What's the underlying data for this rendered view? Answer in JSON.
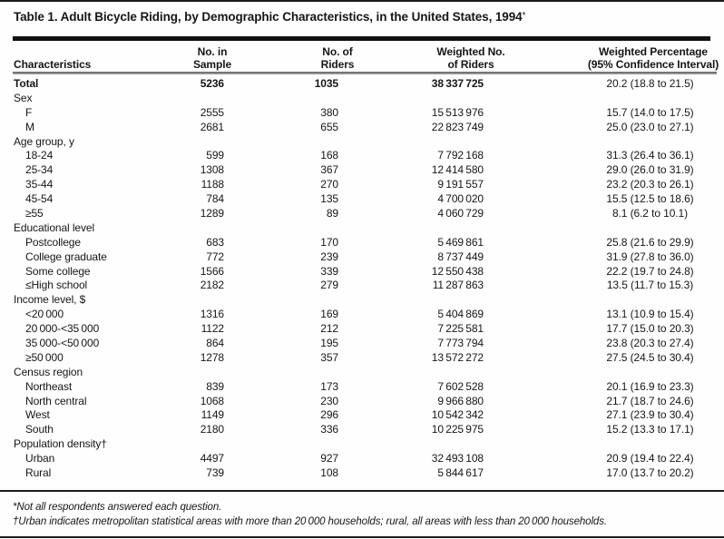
{
  "title": {
    "text": "Table 1. Adult Bicycle Riding, by Demographic Characteristics, in the United States, 1994",
    "note_marker": "*"
  },
  "table": {
    "col_headers": {
      "characteristics": "Characteristics",
      "sample_l1": "No. in",
      "sample_l2": "Sample",
      "riders_l1": "No. of",
      "riders_l2": "Riders",
      "weighted_l1": "Weighted No.",
      "weighted_l2": "of Riders",
      "pct_l1": "Weighted Percentage",
      "pct_l2": "(95% Confidence Interval)"
    },
    "rows": [
      {
        "type": "total",
        "label": "Total",
        "sample": "5236",
        "riders": "1035",
        "weighted": "38 337 725",
        "pct": "20.2 (18.8 to 21.5)"
      },
      {
        "type": "group",
        "label": "Sex"
      },
      {
        "type": "item",
        "label": "F",
        "sample": "2555",
        "riders": "380",
        "weighted": "15 513 976",
        "pct": "15.7 (14.0 to 17.5)"
      },
      {
        "type": "item",
        "label": "M",
        "sample": "2681",
        "riders": "655",
        "weighted": "22 823 749",
        "pct": "25.0 (23.0 to 27.1)"
      },
      {
        "type": "group",
        "label": "Age group, y"
      },
      {
        "type": "item",
        "label": "18-24",
        "sample": "599",
        "riders": "168",
        "weighted": "7 792 168",
        "pct": "31.3 (26.4 to 36.1)"
      },
      {
        "type": "item",
        "label": "25-34",
        "sample": "1308",
        "riders": "367",
        "weighted": "12 414 580",
        "pct": "29.0 (26.0 to 31.9)"
      },
      {
        "type": "item",
        "label": "35-44",
        "sample": "1188",
        "riders": "270",
        "weighted": "9 191 557",
        "pct": "23.2 (20.3 to 26.1)"
      },
      {
        "type": "item",
        "label": "45-54",
        "sample": "784",
        "riders": "135",
        "weighted": "4 700 020",
        "pct": "15.5 (12.5 to 18.6)"
      },
      {
        "type": "item",
        "label": "≥55",
        "sample": "1289",
        "riders": "89",
        "weighted": "4 060 729",
        "pct": "8.1 (6.2 to 10.1)"
      },
      {
        "type": "group",
        "label": "Educational level"
      },
      {
        "type": "item",
        "label": "Postcollege",
        "sample": "683",
        "riders": "170",
        "weighted": "5 469 861",
        "pct": "25.8 (21.6 to 29.9)"
      },
      {
        "type": "item",
        "label": "College graduate",
        "sample": "772",
        "riders": "239",
        "weighted": "8 737 449",
        "pct": "31.9 (27.8 to 36.0)"
      },
      {
        "type": "item",
        "label": "Some college",
        "sample": "1566",
        "riders": "339",
        "weighted": "12 550 438",
        "pct": "22.2 (19.7 to 24.8)"
      },
      {
        "type": "item",
        "label": "≤High school",
        "sample": "2182",
        "riders": "279",
        "weighted": "11 287 863",
        "pct": "13.5 (11.7 to 15.3)"
      },
      {
        "type": "group",
        "label": "Income level, $"
      },
      {
        "type": "item",
        "label": "<20 000",
        "sample": "1316",
        "riders": "169",
        "weighted": "5 404 869",
        "pct": "13.1 (10.9 to 15.4)"
      },
      {
        "type": "item",
        "label": "20 000-<35 000",
        "sample": "1122",
        "riders": "212",
        "weighted": "7 225 581",
        "pct": "17.7 (15.0 to 20.3)"
      },
      {
        "type": "item",
        "label": "35 000-<50 000",
        "sample": "864",
        "riders": "195",
        "weighted": "7 773 794",
        "pct": "23.8 (20.3 to 27.4)"
      },
      {
        "type": "item",
        "label": "≥50 000",
        "sample": "1278",
        "riders": "357",
        "weighted": "13 572 272",
        "pct": "27.5 (24.5 to 30.4)"
      },
      {
        "type": "group",
        "label": "Census region"
      },
      {
        "type": "item",
        "label": "Northeast",
        "sample": "839",
        "riders": "173",
        "weighted": "7 602 528",
        "pct": "20.1 (16.9 to 23.3)"
      },
      {
        "type": "item",
        "label": "North central",
        "sample": "1068",
        "riders": "230",
        "weighted": "9 966 880",
        "pct": "21.7 (18.7 to 24.6)"
      },
      {
        "type": "item",
        "label": "West",
        "sample": "1149",
        "riders": "296",
        "weighted": "10 542 342",
        "pct": "27.1 (23.9 to 30.4)"
      },
      {
        "type": "item",
        "label": "South",
        "sample": "2180",
        "riders": "336",
        "weighted": "10 225 975",
        "pct": "15.2 (13.3 to 17.1)"
      },
      {
        "type": "group",
        "label": "Population density†"
      },
      {
        "type": "item",
        "label": "Urban",
        "sample": "4497",
        "riders": "927",
        "weighted": "32 493 108",
        "pct": "20.9 (19.4 to 22.4)"
      },
      {
        "type": "item",
        "label": "Rural",
        "sample": "739",
        "riders": "108",
        "weighted": "5 844 617",
        "pct": "17.0 (13.7 to 20.2)"
      }
    ]
  },
  "footnotes": [
    "*Not all respondents answered each question.",
    "†Urban indicates metropolitan statistical areas with more than 20 000 households; rural, all areas with less than 20 000 households."
  ]
}
